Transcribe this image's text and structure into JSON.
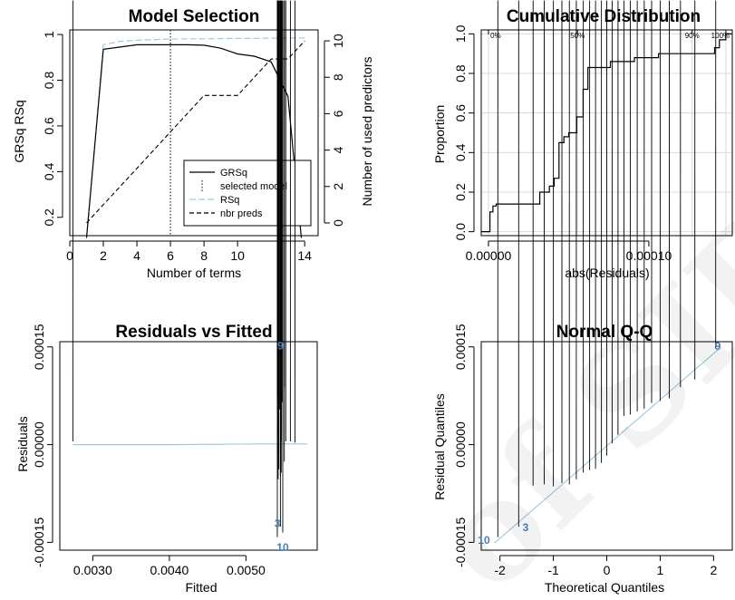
{
  "watermark": "of SID",
  "chart_data": [
    {
      "type": "line",
      "title": "Model Selection",
      "xlabel": "Number of terms",
      "ylabel": "GRSq   RSq",
      "y2label": "Number of used predictors",
      "xlim": [
        0,
        14.8
      ],
      "ylim": [
        0.12,
        1.02
      ],
      "y2lim": [
        -0.7,
        10.6
      ],
      "xticks": [
        0,
        2,
        4,
        6,
        8,
        10,
        14
      ],
      "yticks": [
        0.2,
        0.4,
        0.6,
        0.8,
        1
      ],
      "ytick_labels": [
        "0.2",
        "0.4",
        "0.6",
        "0.8",
        "1"
      ],
      "y2ticks": [
        0,
        2,
        4,
        6,
        8,
        10
      ],
      "selected_terms": 6,
      "legend": [
        "GRSq",
        "selected model",
        "RSq",
        "nbr preds"
      ],
      "legend_position": "bottom-right",
      "series": [
        {
          "name": "GRSq",
          "x": [
            1,
            2,
            3,
            4,
            5,
            6,
            7,
            8,
            9,
            10,
            11,
            12,
            13,
            13.8
          ],
          "y": [
            0.11,
            0.935,
            0.945,
            0.955,
            0.955,
            0.955,
            0.955,
            0.953,
            0.94,
            0.915,
            0.905,
            0.88,
            0.73,
            0.11
          ]
        },
        {
          "name": "RSq",
          "x": [
            1,
            2,
            3,
            4,
            5,
            6,
            7,
            8,
            9,
            10,
            11,
            12,
            13,
            14
          ],
          "y": [
            0.11,
            0.955,
            0.97,
            0.975,
            0.978,
            0.98,
            0.981,
            0.981,
            0.982,
            0.983,
            0.983,
            0.984,
            0.985,
            0.985
          ]
        },
        {
          "name": "nbr preds",
          "x": [
            1,
            2,
            3,
            4,
            5,
            6,
            7,
            8,
            9,
            10,
            11,
            12,
            13,
            14
          ],
          "y": [
            0,
            1,
            2,
            3,
            4,
            5,
            6,
            7,
            7,
            7,
            8,
            9,
            9,
            10
          ]
        }
      ]
    },
    {
      "type": "line",
      "title": "Cumulative Distribution",
      "xlabel": "abs(Residuals)",
      "ylabel": "Proportion",
      "xlim": [
        -4.5e-06,
        0.000152
      ],
      "ylim": [
        -0.02,
        1.02
      ],
      "xticks": [
        0,
        0.0001
      ],
      "xtick_labels": [
        "0.00000",
        "0.00010"
      ],
      "yticks": [
        0,
        0.2,
        0.4,
        0.6,
        0.8,
        1
      ],
      "ytick_labels": [
        "0.0",
        "0.2",
        "0.4",
        "0.6",
        "0.8",
        "1.0"
      ],
      "percentile_labels": [
        "0%",
        "50%",
        "90%",
        "100%"
      ],
      "percentile_x": [
        0,
        5.55e-05,
        0.000127,
        0.000148
      ],
      "step": {
        "x": [
          -4.5e-06,
          9e-07,
          2.8e-06,
          4.8e-06,
          1.8e-05,
          3.2e-05,
          3.8e-05,
          4.1e-05,
          4.4e-05,
          4.7e-05,
          5e-05,
          5.5e-05,
          5.9e-05,
          6.2e-05,
          7.6e-05,
          9.1e-05,
          0.000106,
          0.000137,
          0.000141,
          0.000144,
          0.000148,
          0.000152
        ],
        "y": [
          0,
          0.1,
          0.13,
          0.14,
          0.14,
          0.2,
          0.23,
          0.27,
          0.45,
          0.48,
          0.5,
          0.58,
          0.72,
          0.83,
          0.86,
          0.88,
          0.9,
          0.9,
          0.93,
          0.97,
          1,
          1
        ]
      }
    },
    {
      "type": "scatter",
      "title": "Residuals vs Fitted",
      "xlabel": "Fitted",
      "ylabel": "Residuals",
      "xlim": [
        0.00257,
        0.00593
      ],
      "ylim": [
        -0.000162,
        0.000158
      ],
      "xticks": [
        0.003,
        0.004,
        0.005
      ],
      "xtick_labels": [
        "0.0030",
        "0.0040",
        "0.0050"
      ],
      "yticks": [
        -0.00015,
        0,
        0.00015
      ],
      "ytick_labels": [
        "-0.00015",
        "0.00000",
        "0.00015"
      ],
      "points": {
        "x": [
          0.00274,
          0.00543,
          0.00545,
          0.00542,
          0.0055,
          0.00541,
          0.00541,
          0.00542,
          0.00547,
          0.00544,
          0.00546,
          0.00552,
          0.00546,
          0.00558,
          0.00564,
          0.00542,
          0.0055,
          0.00543,
          0.00546,
          0.00545,
          0.00542,
          0.00545,
          0.00548,
          0.00541
        ],
        "y": [
          0,
          0.000143,
          0.000125,
          9.5e-05,
          8.3e-05,
          7.2e-05,
          6.8e-05,
          7e-05,
          6e-05,
          4.9e-05,
          3e-06,
          0,
          0,
          0,
          -2e-06,
          -2e-05,
          -3.1e-05,
          -4.3e-05,
          -4.8e-05,
          -5.3e-05,
          -5.8e-05,
          -0.000131,
          -0.00014,
          -0.000147
        ]
      },
      "fit": {
        "x": [
          0.00274,
          0.004,
          0.0052,
          0.0058
        ],
        "y": [
          0,
          0,
          1e-06,
          1e-06
        ]
      },
      "annotations": [
        {
          "text": "9",
          "x": 0.00545,
          "y": 0.000152
        },
        {
          "text": "3",
          "x": 0.00541,
          "y": -0.000121
        },
        {
          "text": "10",
          "x": 0.00548,
          "y": -0.000158
        }
      ]
    },
    {
      "type": "scatter",
      "title": "Normal Q-Q",
      "xlabel": "Theoretical Quantiles",
      "ylabel": "Residual Quantiles",
      "xlim": [
        -2.35,
        2.35
      ],
      "ylim": [
        -0.000162,
        0.000158
      ],
      "xticks": [
        -2,
        -1,
        0,
        1,
        2
      ],
      "xtick_labels": [
        "-2",
        "-1",
        "0",
        "1",
        "2"
      ],
      "yticks": [
        -0.00015,
        0,
        0.00015
      ],
      "ytick_labels": [
        "-0.00015",
        "0.00000",
        "0.00015"
      ],
      "points": {
        "x": [
          -2.04,
          -1.65,
          -1.38,
          -1.17,
          -1.0,
          -0.84,
          -0.7,
          -0.57,
          -0.44,
          -0.32,
          -0.21,
          -0.1,
          0,
          0.1,
          0.21,
          0.32,
          0.44,
          0.57,
          0.7,
          0.84,
          1.0,
          1.17,
          1.38,
          1.65,
          2.04
        ],
        "y": [
          -0.000147,
          -0.000131,
          -6.8e-05,
          -6.6e-05,
          -6.9e-05,
          -6.4e-05,
          -6.6e-05,
          -5.8e-05,
          -4.8e-05,
          -4.4e-05,
          -4.2e-05,
          -3.3e-05,
          -2.2e-05,
          -3e-06,
          1e-05,
          3.9e-05,
          4.1e-05,
          4.6e-05,
          5e-05,
          5.9e-05,
          6.2e-05,
          6.6e-05,
          8.3e-05,
          9.5e-05,
          0.000143
        ]
      },
      "fit": {
        "x": [
          -2.1,
          2.1
        ],
        "y": [
          -0.000151,
          0.000147
        ]
      },
      "annotations": [
        {
          "text": "9",
          "x": 2.08,
          "y": 0.000151
        },
        {
          "text": "3",
          "x": -1.52,
          "y": -0.000127
        },
        {
          "text": "10",
          "x": -2.3,
          "y": -0.000147
        }
      ]
    }
  ]
}
